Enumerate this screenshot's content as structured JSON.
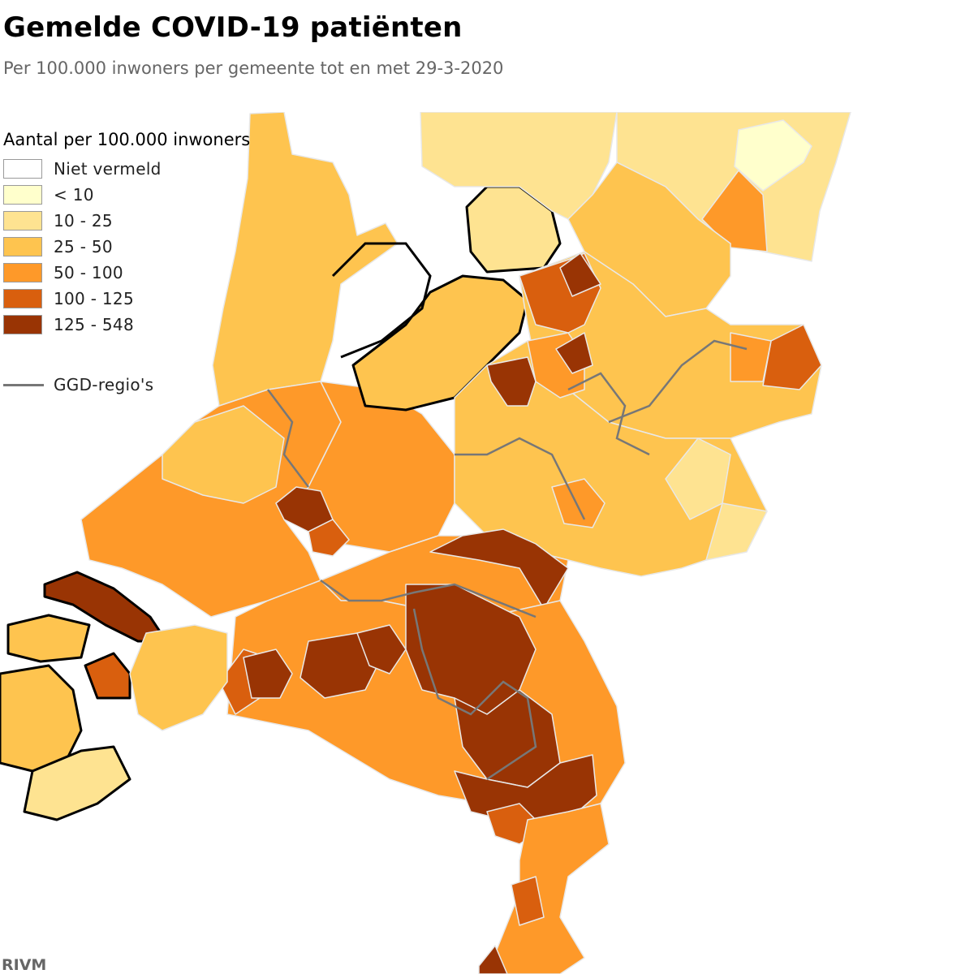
{
  "title": "Gemelde COVID-19 patiënten",
  "subtitle": "Per 100.000 inwoners per gemeente tot en met 29-3-2020",
  "legend": {
    "title": "Aantal per 100.000 inwoners",
    "items": [
      {
        "label": "Niet vermeld",
        "color": "#ffffff"
      },
      {
        "label": "< 10",
        "color": "#ffffcc"
      },
      {
        "label": "10 - 25",
        "color": "#fee391"
      },
      {
        "label": "25 - 50",
        "color": "#fec44f"
      },
      {
        "label": "50 - 100",
        "color": "#fe9929"
      },
      {
        "label": "100 - 125",
        "color": "#d95f0e"
      },
      {
        "label": "125 - 548",
        "color": "#993404"
      }
    ],
    "ggd_label": "GGD-regio's",
    "ggd_color": "#777777"
  },
  "source": "RIVM"
}
